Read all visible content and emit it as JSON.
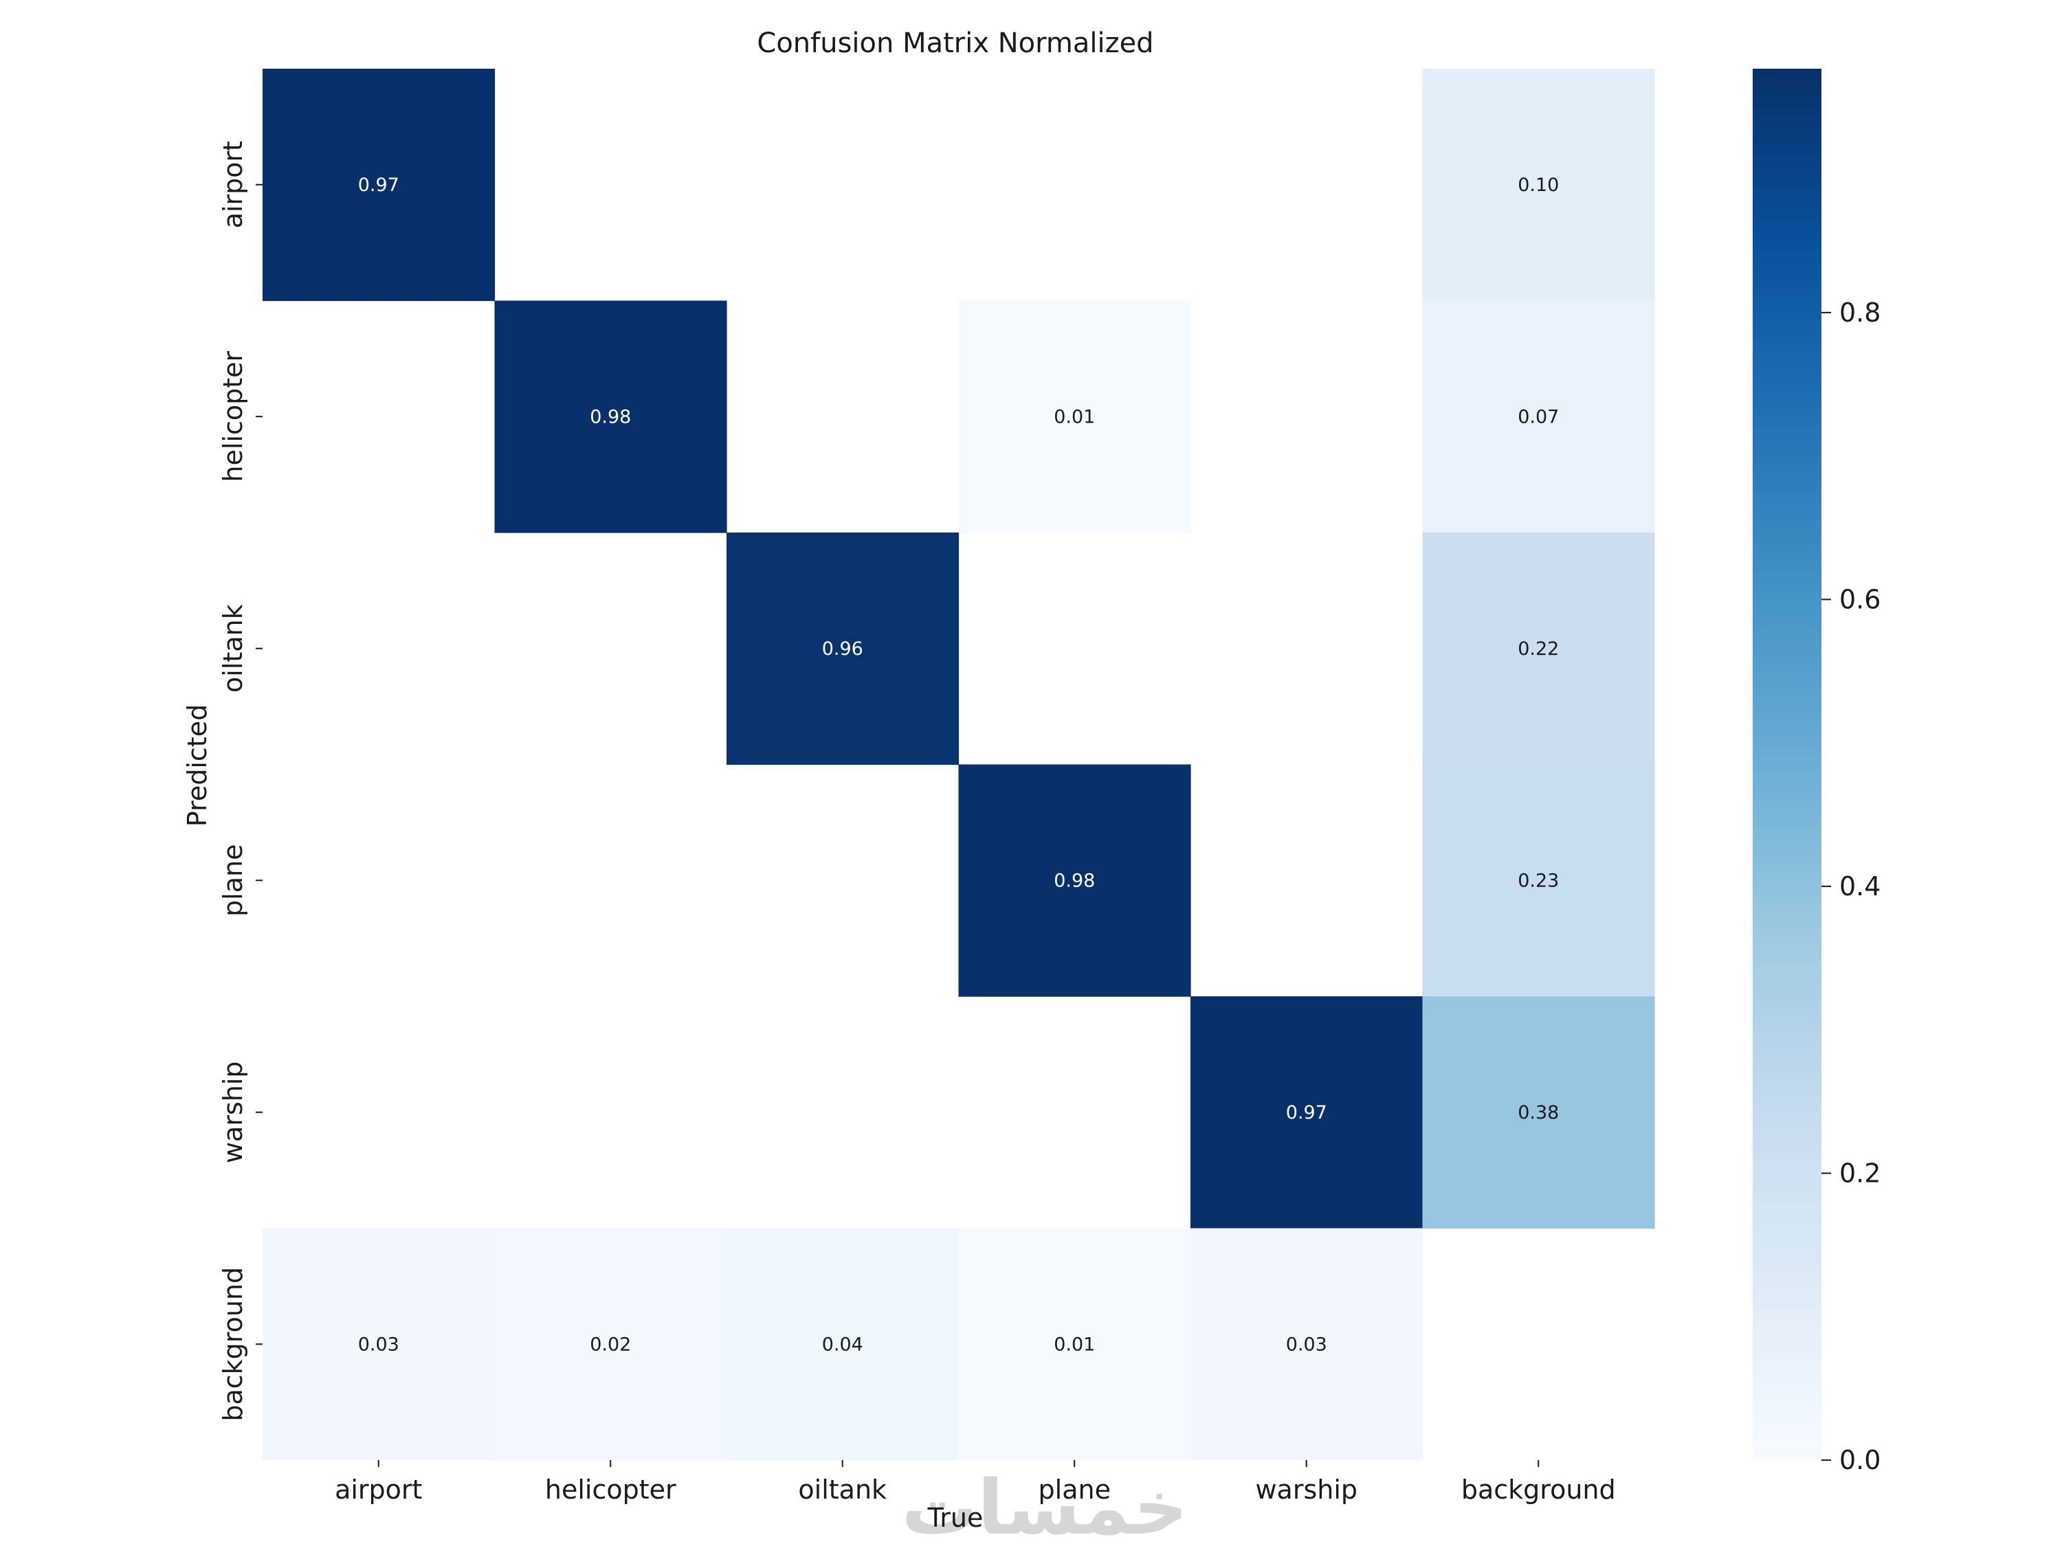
{
  "chart_data": {
    "type": "heatmap",
    "title": "Confusion Matrix Normalized",
    "xlabel": "True",
    "ylabel": "Predicted",
    "x_categories": [
      "airport",
      "helicopter",
      "oiltank",
      "plane",
      "warship",
      "background"
    ],
    "y_categories": [
      "airport",
      "helicopter",
      "oiltank",
      "plane",
      "warship",
      "background"
    ],
    "values": [
      [
        0.97,
        null,
        null,
        null,
        null,
        0.1
      ],
      [
        null,
        0.98,
        null,
        0.01,
        null,
        0.07
      ],
      [
        null,
        null,
        0.96,
        null,
        null,
        0.22
      ],
      [
        null,
        null,
        null,
        0.98,
        null,
        0.23
      ],
      [
        null,
        null,
        null,
        null,
        0.97,
        0.38
      ],
      [
        0.03,
        0.02,
        0.04,
        0.01,
        0.03,
        null
      ]
    ],
    "value_labels": [
      [
        "0.97",
        "",
        "",
        "",
        "",
        "0.10"
      ],
      [
        "",
        "0.98",
        "",
        "0.01",
        "",
        "0.07"
      ],
      [
        "",
        "",
        "0.96",
        "",
        "",
        "0.22"
      ],
      [
        "",
        "",
        "",
        "0.98",
        "",
        "0.23"
      ],
      [
        "",
        "",
        "",
        "",
        "0.97",
        "0.38"
      ],
      [
        "0.03",
        "0.02",
        "0.04",
        "0.01",
        "0.03",
        ""
      ]
    ],
    "colormap": "Blues",
    "colorbar": {
      "range": [
        0.0,
        0.97
      ],
      "ticks": [
        0.0,
        0.2,
        0.4,
        0.6,
        0.8
      ],
      "tick_labels": [
        "0.0",
        "0.2",
        "0.4",
        "0.6",
        "0.8"
      ]
    },
    "grid": false
  },
  "watermark_text": "خمسات"
}
